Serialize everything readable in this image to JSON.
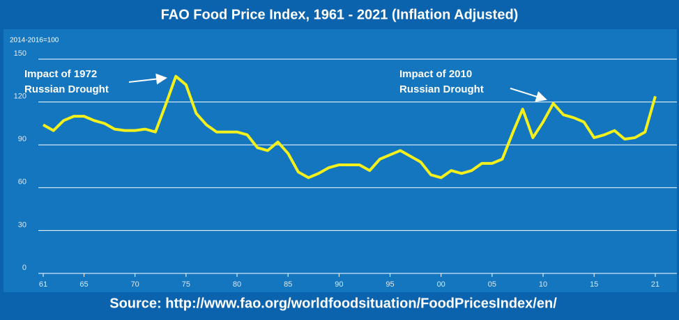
{
  "chart_data": {
    "type": "line",
    "title": "FAO Food Price Index, 1961 - 2021 (Inflation Adjusted)",
    "y_unit_label": "2014-2016=100",
    "source": "Source: http://www.fao.org/worldfoodsituation/FoodPricesIndex/en/",
    "annotations": [
      {
        "lines": [
          "Impact of 1972",
          "Russian Drought"
        ]
      },
      {
        "lines": [
          "Impact of 2010",
          "Russian Drought"
        ]
      }
    ],
    "x": [
      1961,
      1962,
      1963,
      1964,
      1965,
      1966,
      1967,
      1968,
      1969,
      1970,
      1971,
      1972,
      1973,
      1974,
      1975,
      1976,
      1977,
      1978,
      1979,
      1980,
      1981,
      1982,
      1983,
      1984,
      1985,
      1986,
      1987,
      1988,
      1989,
      1990,
      1991,
      1992,
      1993,
      1994,
      1995,
      1996,
      1997,
      1998,
      1999,
      2000,
      2001,
      2002,
      2003,
      2004,
      2005,
      2006,
      2007,
      2008,
      2009,
      2010,
      2011,
      2012,
      2013,
      2014,
      2015,
      2016,
      2017,
      2018,
      2019,
      2020,
      2021
    ],
    "series": [
      {
        "name": "FAO Food Price Index",
        "color": "#f4f01c",
        "values": [
          104,
          100,
          107,
          110,
          110,
          107,
          105,
          101,
          100,
          100,
          101,
          99,
          118,
          138,
          132,
          112,
          104,
          99,
          99,
          99,
          97,
          88,
          86,
          92,
          84,
          71,
          67,
          70,
          74,
          76,
          76,
          76,
          72,
          80,
          83,
          86,
          82,
          78,
          69,
          67,
          72,
          70,
          72,
          77,
          77,
          80,
          98,
          115,
          95,
          106,
          119,
          111,
          109,
          106,
          95,
          97,
          100,
          94,
          95,
          99,
          124
        ]
      }
    ],
    "xlim": [
      1961,
      2021
    ],
    "xticks": [
      {
        "value": 1961,
        "label": "61"
      },
      {
        "value": 1965,
        "label": "65"
      },
      {
        "value": 1970,
        "label": "70"
      },
      {
        "value": 1975,
        "label": "75"
      },
      {
        "value": 1980,
        "label": "80"
      },
      {
        "value": 1985,
        "label": "85"
      },
      {
        "value": 1990,
        "label": "90"
      },
      {
        "value": 1995,
        "label": "95"
      },
      {
        "value": 2000,
        "label": "00"
      },
      {
        "value": 2005,
        "label": "05"
      },
      {
        "value": 2010,
        "label": "10"
      },
      {
        "value": 2015,
        "label": "15"
      },
      {
        "value": 2021,
        "label": "21"
      }
    ],
    "ylim": [
      0,
      150
    ],
    "yticks": [
      0,
      30,
      60,
      90,
      120,
      150
    ],
    "grid": true
  }
}
